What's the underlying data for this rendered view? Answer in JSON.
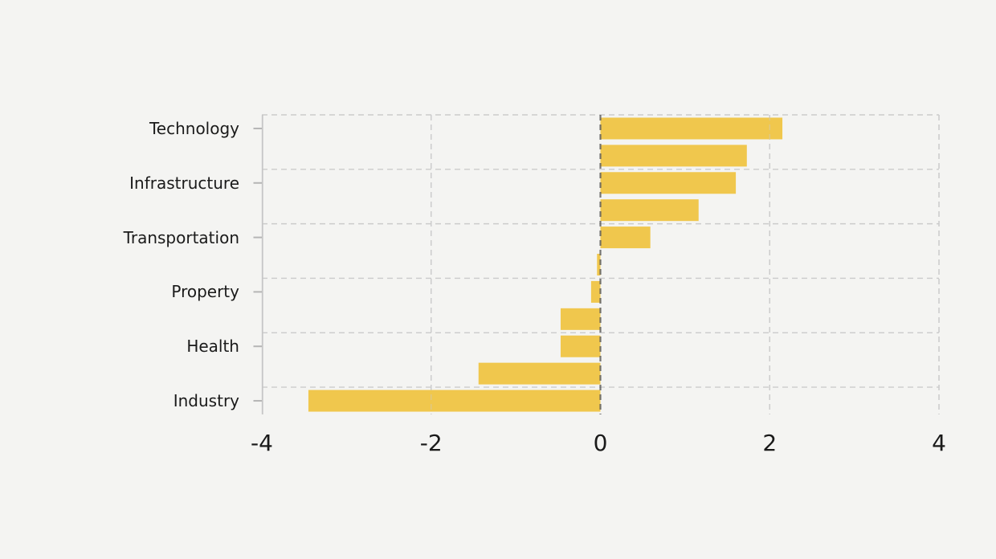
{
  "chart_data": {
    "type": "bar",
    "orientation": "horizontal",
    "title": "",
    "xlabel": "",
    "ylabel": "",
    "categories": [
      "Technology",
      "",
      "Infrastructure",
      "",
      "Transportation",
      "",
      "Property",
      "",
      "Health",
      "",
      "Industry"
    ],
    "values": [
      2.15,
      1.73,
      1.6,
      1.16,
      0.59,
      -0.04,
      -0.11,
      -0.47,
      -0.47,
      -1.44,
      -3.45
    ],
    "xlim": [
      -4,
      4
    ],
    "xticks": [
      -4,
      -2,
      0,
      2,
      4
    ],
    "xtick_labels": [
      "-4",
      "-2",
      "0",
      "2",
      "4"
    ],
    "grid": true,
    "legend": false,
    "colors": {
      "bar": "#F0C74D",
      "background": "#f4f4f2",
      "gridline": "#cbcbcb",
      "zero_line": "#565656",
      "axis_spine": "#c6c6c6",
      "tick_mark": "#b5b5b5",
      "text": "#1a1a1a"
    }
  }
}
